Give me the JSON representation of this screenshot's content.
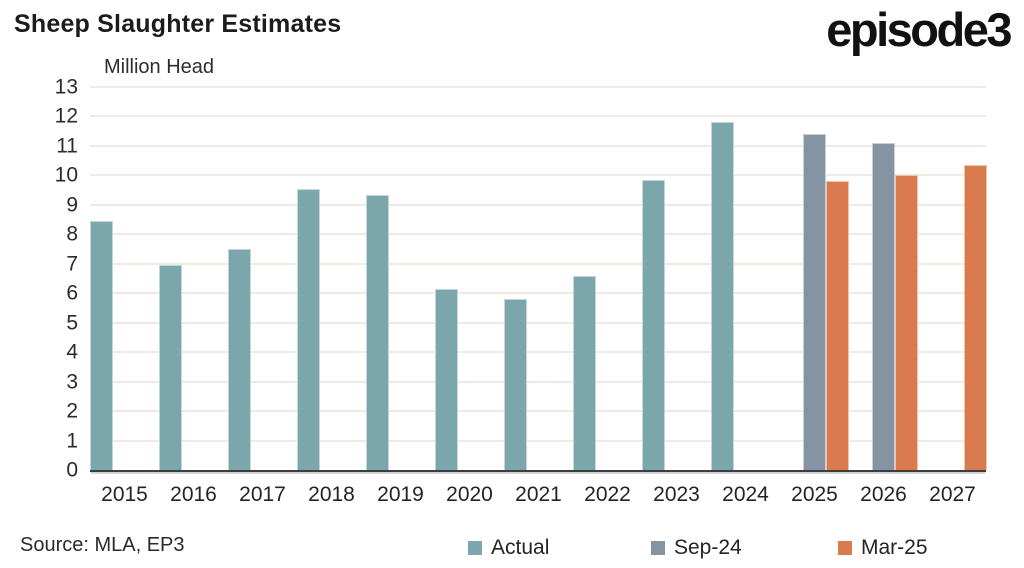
{
  "header": {
    "logo_text": "episode3"
  },
  "footer": {
    "source": "Source: MLA, EP3"
  },
  "chart_data": {
    "type": "bar",
    "title": "Sheep Slaughter Estimates",
    "ylabel": "Million Head",
    "xlabel": "",
    "categories": [
      "2015",
      "2016",
      "2017",
      "2018",
      "2019",
      "2020",
      "2021",
      "2022",
      "2023",
      "2024",
      "2025",
      "2026",
      "2027"
    ],
    "series": [
      {
        "name": "Actual",
        "color": "#7ba6ac",
        "values": [
          8.45,
          6.95,
          7.5,
          9.55,
          9.35,
          6.15,
          5.8,
          6.6,
          9.85,
          11.8,
          null,
          null,
          null
        ]
      },
      {
        "name": "Sep-24",
        "color": "#8594a2",
        "values": [
          null,
          null,
          null,
          null,
          null,
          null,
          null,
          null,
          null,
          null,
          11.4,
          11.1,
          null
        ]
      },
      {
        "name": "Mar-25",
        "color": "#d97b4f",
        "values": [
          null,
          null,
          null,
          null,
          null,
          null,
          null,
          null,
          null,
          null,
          9.8,
          10.0,
          10.35
        ]
      }
    ],
    "ylim": [
      0,
      13
    ],
    "yticks": [
      0,
      1,
      2,
      3,
      4,
      5,
      6,
      7,
      8,
      9,
      10,
      11,
      12,
      13
    ],
    "grid": true,
    "gridline_color": "#eeebe2",
    "axis_line_color": "#3d3d3d",
    "legend_position": "bottom"
  }
}
